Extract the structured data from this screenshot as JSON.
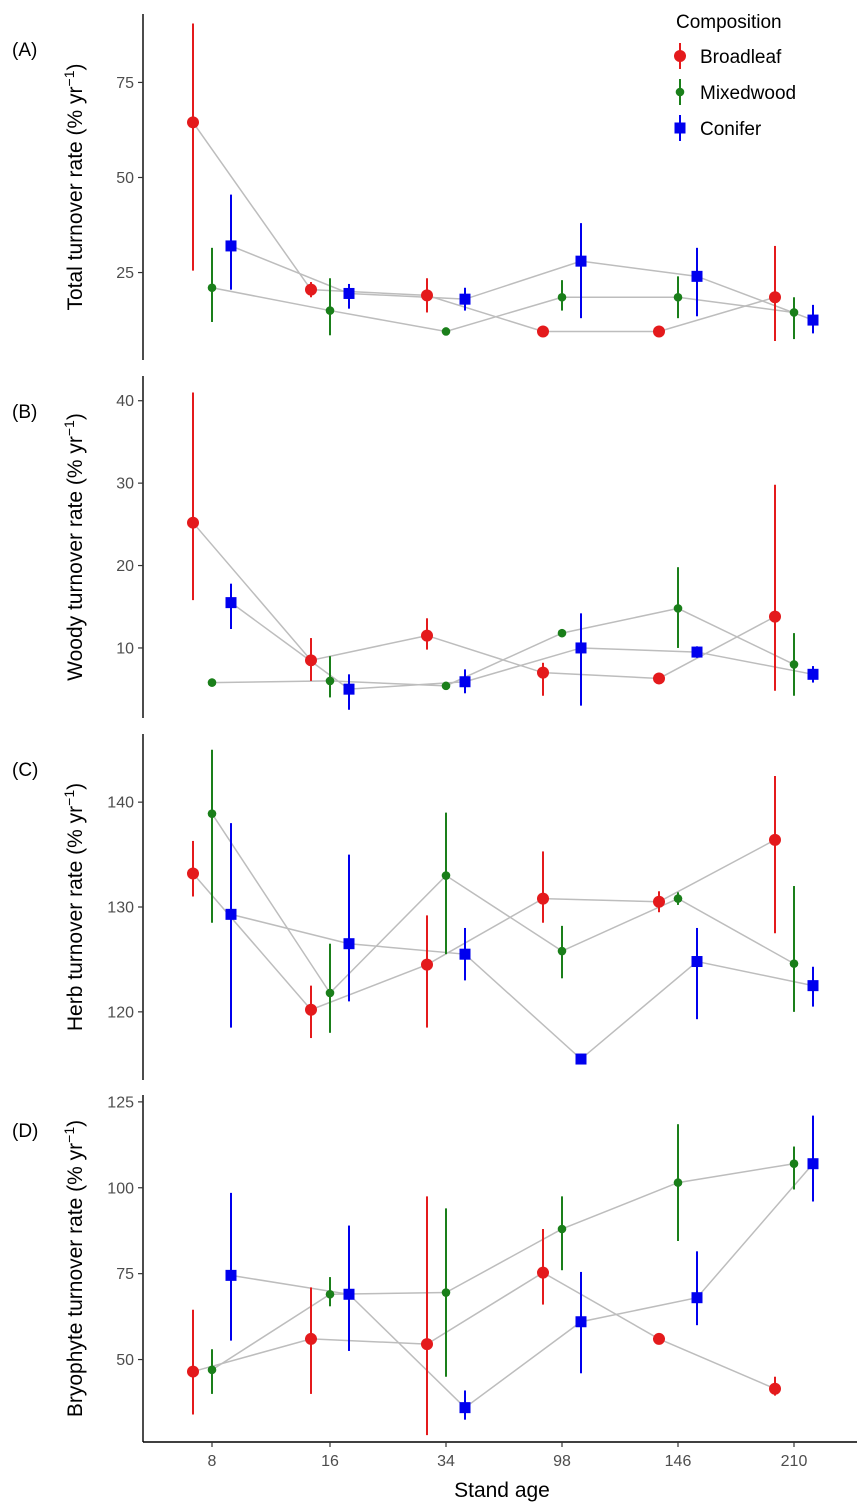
{
  "legend": {
    "title": "Composition",
    "entries": [
      {
        "label": "Broadleaf",
        "color": "#e41a1c",
        "shape": "circle"
      },
      {
        "label": "Mixedwood",
        "color": "#1a7f1a",
        "shape": "small-circle"
      },
      {
        "label": "Conifer",
        "color": "#0000ee",
        "shape": "square"
      }
    ]
  },
  "xlabel": "Stand age",
  "chart_data": {
    "type": "scatter",
    "categories": [
      "8",
      "16",
      "34",
      "98",
      "146",
      "210"
    ],
    "panels": [
      {
        "tag": "(A)",
        "ylabel": "Total turnover rate",
        "ylabel_unit": "(% yr",
        "ylabel_sup": "−1",
        "ylabel_close": ")",
        "ylim": [
          2,
          93
        ],
        "yticks": [
          25,
          50,
          75
        ],
        "series": [
          {
            "name": "Broadleaf",
            "values": [
              64.5,
              20.5,
              19,
              9.5,
              9.5,
              18.5
            ],
            "lower": [
              25.5,
              18.5,
              14.5,
              8.5,
              8.5,
              7
            ],
            "upper": [
              90.5,
              22.5,
              23.5,
              10.5,
              10.5,
              32
            ]
          },
          {
            "name": "Mixedwood",
            "values": [
              21,
              15,
              9.5,
              18.5,
              18.5,
              14.5
            ],
            "lower": [
              12,
              8.5,
              8.5,
              15,
              13,
              7.5
            ],
            "upper": [
              31.5,
              23.5,
              10.5,
              23,
              24,
              18.5
            ]
          },
          {
            "name": "Conifer",
            "values": [
              32,
              19.5,
              18,
              28,
              24,
              12.5
            ],
            "lower": [
              20.5,
              15.5,
              15,
              13,
              13.5,
              9
            ],
            "upper": [
              45.5,
              22,
              21,
              38,
              31.5,
              16.5
            ]
          }
        ]
      },
      {
        "tag": "(B)",
        "ylabel": "Woody turnover rate",
        "ylabel_unit": "(% yr",
        "ylabel_sup": "−1",
        "ylabel_close": ")",
        "ylim": [
          1.5,
          43
        ],
        "yticks": [
          10,
          20,
          30,
          40
        ],
        "series": [
          {
            "name": "Broadleaf",
            "values": [
              25.2,
              8.5,
              11.5,
              7,
              6.3,
              13.8
            ],
            "lower": [
              15.8,
              6,
              9.8,
              4.2,
              5.8,
              4.8
            ],
            "upper": [
              41,
              11.2,
              13.6,
              8.2,
              6.8,
              29.8
            ]
          },
          {
            "name": "Mixedwood",
            "values": [
              5.8,
              6,
              5.4,
              11.8,
              14.8,
              8
            ],
            "lower": [
              5.3,
              4,
              5,
              11.3,
              10,
              4.2
            ],
            "upper": [
              6.3,
              9,
              5.8,
              12.3,
              19.8,
              11.8
            ]
          },
          {
            "name": "Conifer",
            "values": [
              15.5,
              5,
              5.9,
              10,
              9.5,
              6.8
            ],
            "lower": [
              12.3,
              2.5,
              4.5,
              3,
              8.8,
              5.8
            ],
            "upper": [
              17.8,
              6.8,
              7.4,
              14.2,
              10.2,
              7.8
            ]
          }
        ]
      },
      {
        "tag": "(C)",
        "ylabel": "Herb turnover rate",
        "ylabel_unit": "(% yr",
        "ylabel_sup": "−1",
        "ylabel_close": ")",
        "ylim": [
          113.5,
          146.5
        ],
        "yticks": [
          120,
          130,
          140
        ],
        "series": [
          {
            "name": "Broadleaf",
            "values": [
              133.2,
              120.2,
              124.5,
              130.8,
              130.5,
              136.4
            ],
            "lower": [
              131,
              117.5,
              118.5,
              128.5,
              129.5,
              127.5
            ],
            "upper": [
              136.3,
              122.5,
              129.2,
              135.3,
              131.5,
              142.5
            ]
          },
          {
            "name": "Mixedwood",
            "values": [
              138.9,
              121.8,
              133,
              125.8,
              130.8,
              124.6
            ],
            "lower": [
              128.5,
              118,
              125.5,
              123.2,
              130.2,
              120
            ],
            "upper": [
              145,
              126.5,
              139,
              128.2,
              131.4,
              132
            ]
          },
          {
            "name": "Conifer",
            "values": [
              129.3,
              126.5,
              125.5,
              115.5,
              124.8,
              122.5
            ],
            "lower": [
              118.5,
              121,
              123,
              115,
              119.3,
              120.5
            ],
            "upper": [
              138,
              135,
              128,
              116,
              128,
              124.3
            ]
          }
        ]
      },
      {
        "tag": "(D)",
        "ylabel": "Bryophyte turnover rate",
        "ylabel_unit": "(% yr",
        "ylabel_sup": "−1",
        "ylabel_close": ")",
        "ylim": [
          26,
          127
        ],
        "yticks": [
          50,
          75,
          100,
          125
        ],
        "series": [
          {
            "name": "Broadleaf",
            "values": [
              46.5,
              56,
              54.5,
              75.3,
              56,
              41.5
            ],
            "lower": [
              34,
              40,
              28,
              66,
              55,
              39.5
            ],
            "upper": [
              64.5,
              71,
              97.5,
              88,
              57,
              45
            ]
          },
          {
            "name": "Mixedwood",
            "values": [
              47,
              69,
              69.5,
              88,
              101.5,
              107
            ],
            "lower": [
              40,
              65.5,
              45,
              76,
              84.5,
              99.5
            ],
            "upper": [
              53,
              74,
              94,
              97.5,
              118.5,
              112
            ]
          },
          {
            "name": "Conifer",
            "values": [
              74.5,
              69,
              36,
              61,
              68,
              107
            ],
            "lower": [
              55.5,
              52.5,
              32.5,
              46,
              60,
              96
            ],
            "upper": [
              98.5,
              89,
              41,
              75.5,
              81.5,
              121
            ]
          }
        ]
      }
    ]
  }
}
